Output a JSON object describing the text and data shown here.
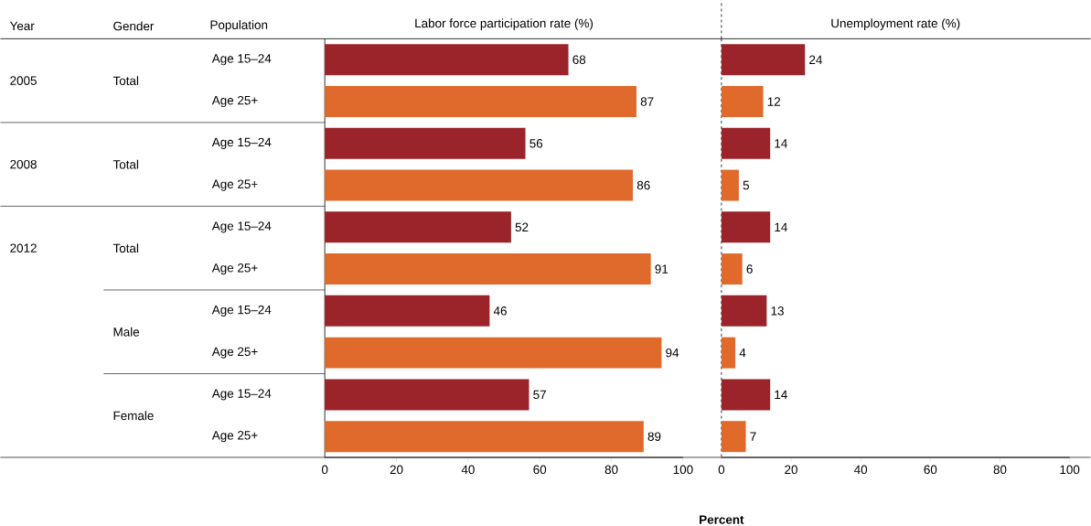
{
  "chart_data": [
    {
      "type": "bar",
      "orientation": "horizontal",
      "title": "Labor force participation rate (%)",
      "categories": [
        "Age 15–24",
        "Age 25+",
        "Age 15–24",
        "Age 25+",
        "Age 15–24",
        "Age 25+",
        "Age 15–24",
        "Age 25+",
        "Age 15–24",
        "Age 25+"
      ],
      "values": [
        68,
        87,
        56,
        86,
        52,
        91,
        46,
        94,
        57,
        89
      ],
      "colors": [
        "#9b242b",
        "#e06a2b",
        "#9b242b",
        "#e06a2b",
        "#9b242b",
        "#e06a2b",
        "#9b242b",
        "#e06a2b",
        "#9b242b",
        "#e06a2b"
      ],
      "xlim": [
        0,
        100
      ],
      "xticks": [
        0,
        20,
        40,
        60,
        80,
        100
      ],
      "data_labels": true,
      "annotations": [
        "Year",
        "Gender",
        "Population",
        "2005",
        "Total",
        "2008",
        "Total",
        "2012",
        "Total",
        "Male",
        "Female"
      ]
    },
    {
      "type": "bar",
      "orientation": "horizontal",
      "title": "Unemployment rate (%)",
      "xlabel": "Percent",
      "categories": [
        null,
        null,
        null,
        null,
        null,
        null,
        null,
        null,
        null,
        null
      ],
      "values": [
        24,
        12,
        14,
        5,
        14,
        6,
        13,
        4,
        14,
        7
      ],
      "colors": [
        "#9b242b",
        "#e06a2b",
        "#9b242b",
        "#e06a2b",
        "#9b242b",
        "#e06a2b",
        "#9b242b",
        "#e06a2b",
        "#9b242b",
        "#e06a2b"
      ],
      "xlim": [
        0,
        100
      ],
      "xticks": [
        0,
        20,
        40,
        60,
        80,
        100
      ],
      "data_labels": true
    }
  ]
}
